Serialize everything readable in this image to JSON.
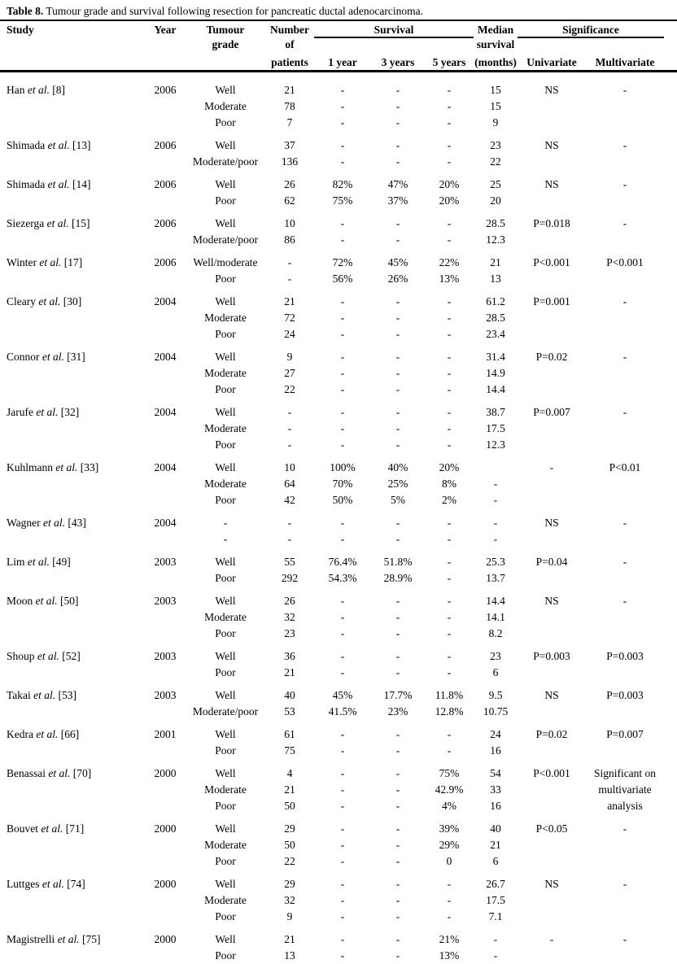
{
  "title": {
    "bold": "Table 8.",
    "rest": " Tumour grade and survival following resection for pancreatic ductal adenocarcinoma."
  },
  "header": {
    "study": "Study",
    "year": "Year",
    "tumour": "Tumour",
    "grade": "grade",
    "number": "Number",
    "of": "of",
    "patients": "patients",
    "survival_group": "Survival",
    "y1": "1 year",
    "y3": "3 years",
    "y5": "5 years",
    "median1": "Median",
    "median2": "survival",
    "median3": "(months)",
    "significance_group": "Significance",
    "univariate": "Univariate",
    "multivariate": "Multivariate"
  },
  "etal": "et al.",
  "colors": {
    "text": "#000000",
    "background": "#ffffff",
    "rules": "#000000"
  },
  "table": {
    "columns": [
      "Study",
      "Year",
      "Tumour grade",
      "Number of patients",
      "1 year",
      "3 years",
      "5 years",
      "Median survival (months)",
      "Univariate",
      "Multivariate"
    ],
    "groups": [
      {
        "study": "Han",
        "ref": "[8]",
        "year": "2006",
        "uni": "NS",
        "multi": "-",
        "rows": [
          [
            "Well",
            "21",
            "-",
            "-",
            "-",
            "15"
          ],
          [
            "Moderate",
            "78",
            "-",
            "-",
            "-",
            "15"
          ],
          [
            "Poor",
            "7",
            "-",
            "-",
            "-",
            "9"
          ]
        ]
      },
      {
        "study": "Shimada",
        "ref": "[13]",
        "year": "2006",
        "uni": "NS",
        "multi": "-",
        "rows": [
          [
            "Well",
            "37",
            "-",
            "-",
            "-",
            "23"
          ],
          [
            "Moderate/poor",
            "136",
            "-",
            "-",
            "-",
            "22"
          ]
        ]
      },
      {
        "study": "Shimada",
        "ref": "[14]",
        "year": "2006",
        "uni": "NS",
        "multi": "-",
        "rows": [
          [
            "Well",
            "26",
            "82%",
            "47%",
            "20%",
            "25"
          ],
          [
            "Poor",
            "62",
            "75%",
            "37%",
            "20%",
            "20"
          ]
        ]
      },
      {
        "study": "Siezerga",
        "ref": "[15]",
        "year": "2006",
        "uni": "P=0.018",
        "multi": "-",
        "rows": [
          [
            "Well",
            "10",
            "-",
            "-",
            "-",
            "28.5"
          ],
          [
            "Moderate/poor",
            "86",
            "-",
            "-",
            "-",
            "12.3"
          ]
        ]
      },
      {
        "study": "Winter",
        "ref": "[17]",
        "year": "2006",
        "uni": "P<0.001",
        "multi": "P<0.001",
        "rows": [
          [
            "Well/moderate",
            "-",
            "72%",
            "45%",
            "22%",
            "21"
          ],
          [
            "Poor",
            "-",
            "56%",
            "26%",
            "13%",
            "13"
          ]
        ]
      },
      {
        "study": "Cleary",
        "ref": "[30]",
        "year": "2004",
        "uni": "P=0.001",
        "multi": "-",
        "rows": [
          [
            "Well",
            "21",
            "-",
            "-",
            "-",
            "61.2"
          ],
          [
            "Moderate",
            "72",
            "-",
            "-",
            "-",
            "28.5"
          ],
          [
            "Poor",
            "24",
            "-",
            "-",
            "-",
            "23.4"
          ]
        ]
      },
      {
        "study": "Connor",
        "ref": "[31]",
        "year": "2004",
        "uni": "P=0.02",
        "multi": "-",
        "rows": [
          [
            "Well",
            "9",
            "-",
            "-",
            "-",
            "31.4"
          ],
          [
            "Moderate",
            "27",
            "-",
            "-",
            "-",
            "14.9"
          ],
          [
            "Poor",
            "22",
            "-",
            "-",
            "-",
            "14.4"
          ]
        ]
      },
      {
        "study": "Jarufe",
        "ref": "[32]",
        "year": "2004",
        "uni": "P=0.007",
        "multi": "-",
        "rows": [
          [
            "Well",
            "-",
            "-",
            "-",
            "-",
            "38.7"
          ],
          [
            "Moderate",
            "-",
            "-",
            "-",
            "-",
            "17.5"
          ],
          [
            "Poor",
            "-",
            "-",
            "-",
            "-",
            "12.3"
          ]
        ]
      },
      {
        "study": "Kuhlmann",
        "ref": "[33]",
        "year": "2004",
        "uni": "-",
        "multi": "P<0.01",
        "rows": [
          [
            "Well",
            "10",
            "100%",
            "40%",
            "20%",
            ""
          ],
          [
            "Moderate",
            "64",
            "70%",
            "25%",
            "8%",
            "-"
          ],
          [
            "Poor",
            "42",
            "50%",
            "5%",
            "2%",
            "-"
          ]
        ]
      },
      {
        "study": "Wagner",
        "ref": "[43]",
        "year": "2004",
        "uni": "NS",
        "multi": "-",
        "rows": [
          [
            "-",
            "-",
            "-",
            "-",
            "-",
            "-"
          ],
          [
            "-",
            "-",
            "-",
            "-",
            "-",
            "-"
          ]
        ]
      },
      {
        "study": "Lim",
        "ref": "[49]",
        "year": "2003",
        "uni": "P=0.04",
        "multi": "-",
        "rows": [
          [
            "Well",
            "55",
            "76.4%",
            "51.8%",
            "-",
            "25.3"
          ],
          [
            "Poor",
            "292",
            "54.3%",
            "28.9%",
            "-",
            "13.7"
          ]
        ]
      },
      {
        "study": "Moon",
        "ref": "[50]",
        "year": "2003",
        "uni": "NS",
        "multi": "-",
        "rows": [
          [
            "Well",
            "26",
            "-",
            "-",
            "-",
            "14.4"
          ],
          [
            "Moderate",
            "32",
            "-",
            "-",
            "-",
            "14.1"
          ],
          [
            "Poor",
            "23",
            "-",
            "-",
            "-",
            "8.2"
          ]
        ]
      },
      {
        "study": "Shoup",
        "ref": "[52]",
        "year": "2003",
        "uni": "P=0.003",
        "multi": "P=0.003",
        "rows": [
          [
            "Well",
            "36",
            "-",
            "-",
            "-",
            "23"
          ],
          [
            "Poor",
            "21",
            "-",
            "-",
            "-",
            "6"
          ]
        ]
      },
      {
        "study": "Takai",
        "ref": "[53]",
        "year": "2003",
        "uni": "NS",
        "multi": "P=0.003",
        "rows": [
          [
            "Well",
            "40",
            "45%",
            "17.7%",
            "11.8%",
            "9.5"
          ],
          [
            "Moderate/poor",
            "53",
            "41.5%",
            "23%",
            "12.8%",
            "10.75"
          ]
        ]
      },
      {
        "study": "Kedra",
        "ref": "[66]",
        "year": "2001",
        "uni": "P=0.02",
        "multi": "P=0.007",
        "rows": [
          [
            "Well",
            "61",
            "-",
            "-",
            "-",
            "24"
          ],
          [
            "Poor",
            "75",
            "-",
            "-",
            "-",
            "16"
          ]
        ]
      },
      {
        "study": "Benassai",
        "ref": "[70]",
        "year": "2000",
        "uni": "P<0.001",
        "multi": "Significant on multivariate analysis",
        "rows": [
          [
            "Well",
            "4",
            "-",
            "-",
            "75%",
            "54"
          ],
          [
            "Moderate",
            "21",
            "-",
            "-",
            "42.9%",
            "33"
          ],
          [
            "Poor",
            "50",
            "-",
            "-",
            "4%",
            "16"
          ]
        ]
      },
      {
        "study": "Bouvet",
        "ref": "[71]",
        "year": "2000",
        "uni": "P<0.05",
        "multi": "-",
        "rows": [
          [
            "Well",
            "29",
            "-",
            "-",
            "39%",
            "40"
          ],
          [
            "Moderate",
            "50",
            "-",
            "-",
            "29%",
            "21"
          ],
          [
            "Poor",
            "22",
            "-",
            "-",
            "0",
            "6"
          ]
        ]
      },
      {
        "study": "Luttges",
        "ref": "[74]",
        "year": "2000",
        "uni": "NS",
        "multi": "-",
        "rows": [
          [
            "Well",
            "29",
            "-",
            "-",
            "-",
            "26.7"
          ],
          [
            "Moderate",
            "32",
            "-",
            "-",
            "-",
            "17.5"
          ],
          [
            "Poor",
            "9",
            "-",
            "-",
            "-",
            "7.1"
          ]
        ]
      },
      {
        "study": "Magistrelli",
        "ref": "[75]",
        "year": "2000",
        "uni": "-",
        "multi": "-",
        "rows": [
          [
            "Well",
            "21",
            "-",
            "-",
            "21%",
            "-"
          ],
          [
            "Poor",
            "13",
            "-",
            "-",
            "13%",
            "-"
          ]
        ]
      }
    ]
  }
}
